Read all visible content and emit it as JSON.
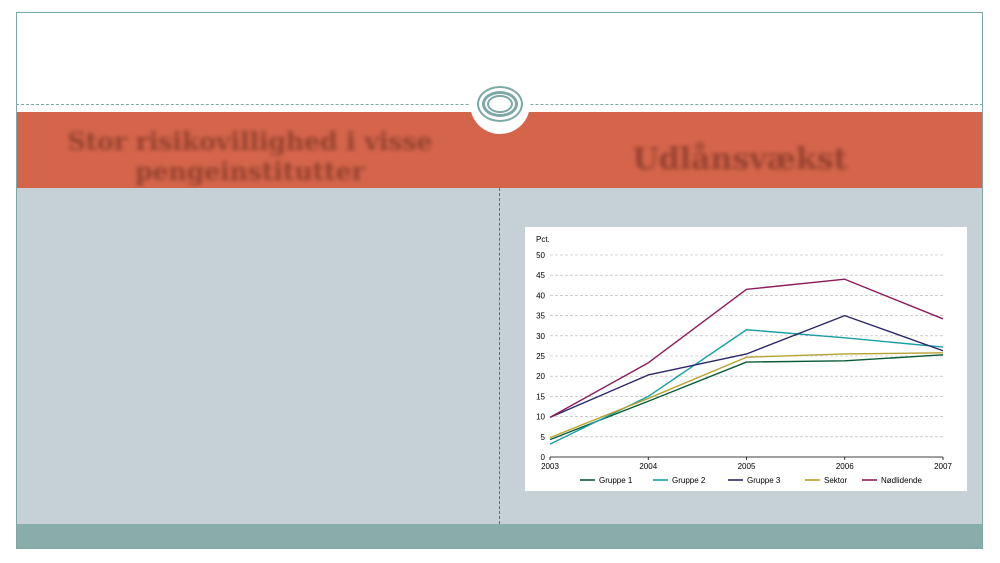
{
  "slide": {
    "left_heading": "Stor risikovillighed i visse pengeinstitutter",
    "right_heading": "Udlånsvækst"
  },
  "colors": {
    "title_band": "#d4654b",
    "content_bg": "#c5d1d7",
    "footer_band": "#8aacaa",
    "frame": "#7ea8a5"
  },
  "chart_data": {
    "type": "line",
    "ylabel": "Pct.",
    "ylim": [
      0,
      50
    ],
    "yticks": [
      0,
      5,
      10,
      15,
      20,
      25,
      30,
      35,
      40,
      45,
      50
    ],
    "x": [
      "2003",
      "2004",
      "2005",
      "2006",
      "2007"
    ],
    "grid": true,
    "legend": "bottom",
    "series": [
      {
        "name": "Gruppe 1",
        "color": "#0b5b38",
        "values": [
          4.3,
          13.8,
          23.5,
          23.8,
          25.3
        ]
      },
      {
        "name": "Gruppe 2",
        "color": "#1a9fa6",
        "values": [
          3.2,
          15.0,
          31.5,
          29.5,
          27.2
        ]
      },
      {
        "name": "Gruppe 3",
        "color": "#2b2769",
        "values": [
          9.8,
          20.3,
          25.5,
          35.0,
          26.3
        ]
      },
      {
        "name": "Sektor",
        "color": "#b6a22f",
        "values": [
          4.8,
          14.5,
          24.7,
          25.5,
          25.8
        ]
      },
      {
        "name": "Nødlidende",
        "color": "#8c1c5b",
        "values": [
          9.8,
          23.3,
          41.5,
          44.0,
          34.2
        ]
      }
    ]
  }
}
